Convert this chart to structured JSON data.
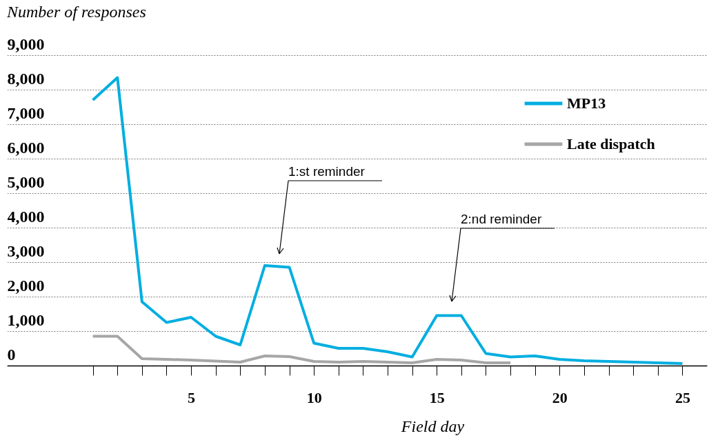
{
  "chart_data": {
    "type": "line",
    "xlabel": "Field day",
    "ylabel": "Number of responses",
    "x": [
      1,
      2,
      3,
      4,
      5,
      6,
      7,
      8,
      9,
      10,
      11,
      12,
      13,
      14,
      15,
      16,
      17,
      18,
      19,
      20,
      21,
      22,
      23,
      24,
      25
    ],
    "series": [
      {
        "name": "MP13",
        "color": "#00aee0",
        "values": [
          7700,
          8350,
          1850,
          1250,
          1400,
          850,
          600,
          2900,
          2850,
          650,
          500,
          500,
          400,
          250,
          1450,
          1450,
          350,
          250,
          280,
          180,
          140,
          120,
          100,
          80,
          60
        ]
      },
      {
        "name": "Late dispatch",
        "color": "#a6a6a6",
        "values": [
          850,
          850,
          200,
          180,
          160,
          130,
          100,
          280,
          260,
          120,
          100,
          120,
          100,
          80,
          180,
          160,
          80,
          80,
          null,
          null,
          null,
          null,
          null,
          null,
          null
        ]
      }
    ],
    "xlim": [
      -2.5,
      26
    ],
    "xticks": [
      {
        "value": 1,
        "label": null
      },
      {
        "value": 2,
        "label": null
      },
      {
        "value": 3,
        "label": null
      },
      {
        "value": 4,
        "label": null
      },
      5,
      {
        "value": 6,
        "label": null
      },
      {
        "value": 7,
        "label": null
      },
      {
        "value": 8,
        "label": null
      },
      {
        "value": 9,
        "label": null
      },
      10,
      {
        "value": 11,
        "label": null
      },
      {
        "value": 12,
        "label": null
      },
      {
        "value": 13,
        "label": null
      },
      {
        "value": 14,
        "label": null
      },
      15,
      {
        "value": 16,
        "label": null
      },
      {
        "value": 17,
        "label": null
      },
      {
        "value": 18,
        "label": null
      },
      {
        "value": 19,
        "label": null
      },
      20,
      {
        "value": 21,
        "label": null
      },
      {
        "value": 22,
        "label": null
      },
      {
        "value": 23,
        "label": null
      },
      {
        "value": 24,
        "label": null
      },
      25
    ],
    "ylim": [
      0,
      9000
    ],
    "yticks": [
      0,
      {
        "value": 1000,
        "label": "1,000"
      },
      {
        "value": 2000,
        "label": "2,000"
      },
      {
        "value": 3000,
        "label": "3,000"
      },
      {
        "value": 4000,
        "label": "4,000"
      },
      {
        "value": 5000,
        "label": "5,000"
      },
      {
        "value": 6000,
        "label": "6,000"
      },
      {
        "value": 7000,
        "label": "7,000"
      },
      {
        "value": 8000,
        "label": "8,000"
      },
      {
        "value": 9000,
        "label": "9,000"
      }
    ],
    "annotations": [
      "1:st reminder",
      "2:nd reminder"
    ],
    "grid": "y",
    "legend": "top right",
    "marker": "none",
    "line_style": "solid"
  }
}
